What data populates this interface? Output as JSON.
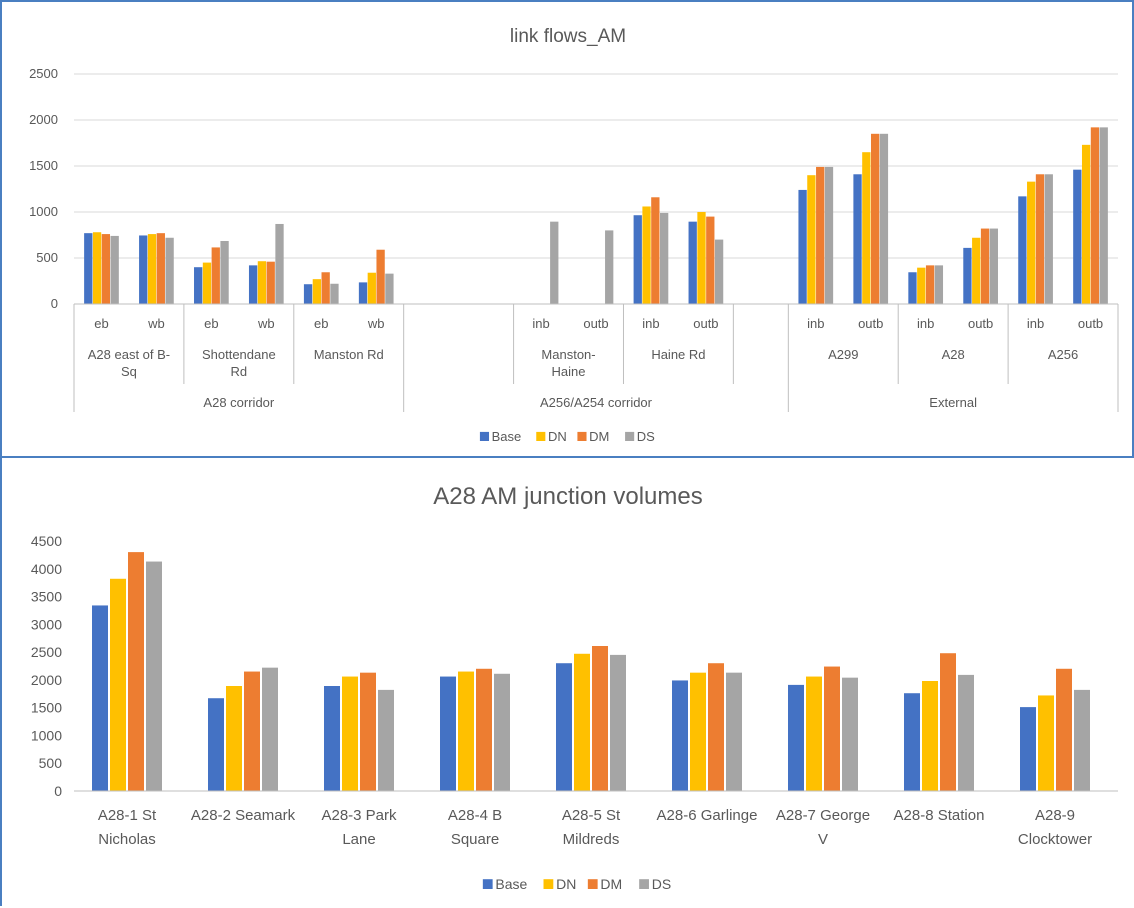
{
  "colors": {
    "Base": "#4472C4",
    "DN": "#FFC000",
    "DM": "#ED7D31",
    "DS": "#A5A5A5",
    "grid": "#d9d9d9",
    "axis": "#bfbfbf"
  },
  "chart_data": [
    {
      "type": "bar",
      "title": "link flows_AM",
      "ylim": [
        0,
        2500
      ],
      "yticks": [
        "0",
        "500",
        "1000",
        "1500",
        "2000",
        "2500"
      ],
      "grid": true,
      "legend_position": "bottom",
      "series_names": [
        "Base",
        "DN",
        "DM",
        "DS"
      ],
      "groups": [
        {
          "label": "A28 corridor",
          "subgroups": [
            {
              "label": [
                "A28 east of B-",
                "Sq"
              ],
              "categories": [
                {
                  "label": "eb",
                  "values": [
                    770,
                    780,
                    760,
                    740
                  ]
                },
                {
                  "label": "wb",
                  "values": [
                    745,
                    760,
                    770,
                    720
                  ]
                }
              ]
            },
            {
              "label": [
                "Shottendane",
                "Rd"
              ],
              "categories": [
                {
                  "label": "eb",
                  "values": [
                    400,
                    450,
                    615,
                    685
                  ]
                },
                {
                  "label": "wb",
                  "values": [
                    420,
                    465,
                    460,
                    870
                  ]
                }
              ]
            },
            {
              "label": [
                "Manston Rd"
              ],
              "categories": [
                {
                  "label": "eb",
                  "values": [
                    215,
                    270,
                    345,
                    220
                  ]
                },
                {
                  "label": "wb",
                  "values": [
                    235,
                    340,
                    590,
                    330
                  ]
                }
              ]
            }
          ]
        },
        {
          "label": "A256/A254 corridor",
          "subgroups": [
            {
              "label": [],
              "categories": [
                {
                  "label": "",
                  "values": [
                    0,
                    0,
                    0,
                    0
                  ]
                },
                {
                  "label": "",
                  "values": [
                    0,
                    0,
                    0,
                    0
                  ]
                }
              ]
            },
            {
              "label": [
                "Manston-",
                "Haine"
              ],
              "categories": [
                {
                  "label": "inb",
                  "values": [
                    0,
                    0,
                    0,
                    895
                  ]
                },
                {
                  "label": "outb",
                  "values": [
                    0,
                    0,
                    0,
                    800
                  ]
                }
              ]
            },
            {
              "label": [
                "Haine Rd"
              ],
              "categories": [
                {
                  "label": "inb",
                  "values": [
                    965,
                    1060,
                    1160,
                    990
                  ]
                },
                {
                  "label": "outb",
                  "values": [
                    895,
                    1000,
                    950,
                    700
                  ]
                }
              ]
            },
            {
              "label": [],
              "categories": [
                {
                  "label": "",
                  "values": [
                    0,
                    0,
                    0,
                    0
                  ]
                }
              ]
            }
          ]
        },
        {
          "label": "External",
          "subgroups": [
            {
              "label": [
                "A299"
              ],
              "categories": [
                {
                  "label": "inb",
                  "values": [
                    1240,
                    1400,
                    1490,
                    1490
                  ]
                },
                {
                  "label": "outb",
                  "values": [
                    1410,
                    1650,
                    1850,
                    1850
                  ]
                }
              ]
            },
            {
              "label": [
                "A28"
              ],
              "categories": [
                {
                  "label": "inb",
                  "values": [
                    345,
                    395,
                    420,
                    420
                  ]
                },
                {
                  "label": "outb",
                  "values": [
                    610,
                    720,
                    820,
                    820
                  ]
                }
              ]
            },
            {
              "label": [
                "A256"
              ],
              "categories": [
                {
                  "label": "inb",
                  "values": [
                    1170,
                    1330,
                    1410,
                    1410
                  ]
                },
                {
                  "label": "outb",
                  "values": [
                    1460,
                    1730,
                    1920,
                    1920
                  ]
                }
              ]
            }
          ]
        }
      ]
    },
    {
      "type": "bar",
      "title": "A28 AM junction volumes",
      "ylim": [
        0,
        4500
      ],
      "yticks": [
        "0",
        "500",
        "1000",
        "1500",
        "2000",
        "2500",
        "3000",
        "3500",
        "4000",
        "4500"
      ],
      "grid": false,
      "legend_position": "bottom",
      "series_names": [
        "Base",
        "DN",
        "DM",
        "DS"
      ],
      "categories": [
        {
          "label": [
            "A28-1 St",
            "Nicholas"
          ],
          "values": [
            3340,
            3820,
            4300,
            4130
          ]
        },
        {
          "label": [
            "A28-2 Seamark"
          ],
          "values": [
            1670,
            1890,
            2150,
            2220
          ]
        },
        {
          "label": [
            "A28-3 Park",
            "Lane"
          ],
          "values": [
            1890,
            2060,
            2130,
            1820
          ]
        },
        {
          "label": [
            "A28-4 B",
            "Square"
          ],
          "values": [
            2060,
            2150,
            2200,
            2110
          ]
        },
        {
          "label": [
            "A28-5 St",
            "Mildreds"
          ],
          "values": [
            2300,
            2470,
            2610,
            2450
          ]
        },
        {
          "label": [
            "A28-6 Garlinge"
          ],
          "values": [
            1990,
            2130,
            2300,
            2130
          ]
        },
        {
          "label": [
            "A28-7 George",
            "V"
          ],
          "values": [
            1910,
            2060,
            2240,
            2040
          ]
        },
        {
          "label": [
            "A28-8 Station"
          ],
          "values": [
            1760,
            1980,
            2480,
            2090
          ]
        },
        {
          "label": [
            "A28-9",
            "Clocktower"
          ],
          "values": [
            1510,
            1720,
            2200,
            1820
          ]
        }
      ]
    }
  ]
}
